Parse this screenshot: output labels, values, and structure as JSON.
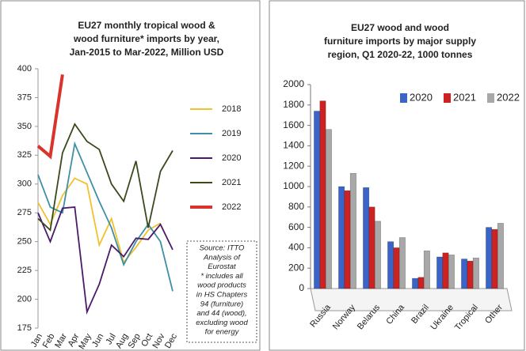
{
  "chart_data": [
    {
      "type": "line",
      "title": [
        "EU27 monthly tropical wood &",
        "wood furniture* imports by year,",
        "Jan-2015 to Mar-2022, Million USD"
      ],
      "categories": [
        "Jan",
        "Feb",
        "Mar",
        "Apr",
        "May",
        "Jun",
        "Jul",
        "Aug",
        "Sep",
        "Oct",
        "Nov",
        "Dec"
      ],
      "series": [
        {
          "name": "2018",
          "color": "#f2c12e",
          "values": [
            284,
            265,
            290,
            305,
            300,
            247,
            270,
            232,
            245,
            260,
            266,
            null
          ]
        },
        {
          "name": "2019",
          "color": "#3f8fa6",
          "values": [
            308,
            280,
            275,
            335,
            310,
            285,
            262,
            230,
            250,
            265,
            250,
            207
          ]
        },
        {
          "name": "2020",
          "color": "#4b1a6b",
          "values": [
            275,
            250,
            279,
            280,
            189,
            213,
            247,
            237,
            253,
            252,
            265,
            243
          ]
        },
        {
          "name": "2021",
          "color": "#3a4a1c",
          "values": [
            270,
            260,
            327,
            352,
            337,
            330,
            300,
            285,
            320,
            262,
            311,
            329
          ]
        },
        {
          "name": "2022",
          "color": "#d9332b",
          "values": [
            333,
            324,
            395,
            null,
            null,
            null,
            null,
            null,
            null,
            null,
            null,
            null
          ]
        }
      ],
      "ylim": [
        175,
        400
      ],
      "yticks": [
        175,
        200,
        225,
        250,
        275,
        300,
        325,
        350,
        375,
        400
      ],
      "annotation": [
        "Source: ITTO",
        "Analysis of",
        "Eurostat",
        "* includes all",
        "wood products",
        "in HS Chapters",
        "94 (furniture)",
        "and 44 (wood),",
        "excluding wood",
        "for energy"
      ]
    },
    {
      "type": "bar",
      "title": [
        "EU27 wood and wood",
        "furniture imports by major supply",
        "region, Q1 2020-22, 1000 tonnes"
      ],
      "categories": [
        "Russia",
        "Norway",
        "Belarus",
        "China",
        "Brazil",
        "Ukraine",
        "Tropical",
        "Other"
      ],
      "series": [
        {
          "name": "2020",
          "color": "#3a64c8",
          "values": [
            1740,
            1000,
            990,
            460,
            100,
            310,
            290,
            600
          ]
        },
        {
          "name": "2021",
          "color": "#cc2222",
          "values": [
            1840,
            960,
            800,
            400,
            110,
            350,
            270,
            580
          ]
        },
        {
          "name": "2022",
          "color": "#a8a8a8",
          "values": [
            1560,
            1130,
            660,
            500,
            370,
            330,
            300,
            640
          ]
        }
      ],
      "ylim": [
        0,
        2000
      ],
      "yticks": [
        0,
        200,
        400,
        600,
        800,
        1000,
        1200,
        1400,
        1600,
        1800,
        2000
      ]
    }
  ]
}
